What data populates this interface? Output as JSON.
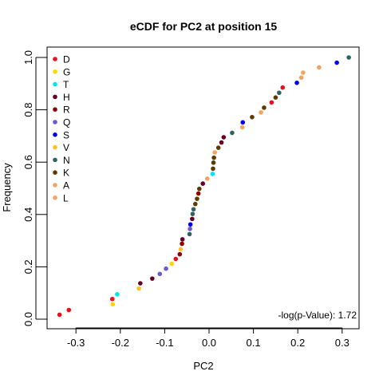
{
  "chart_data": {
    "type": "scatter",
    "title": "eCDF for PC2 at position 15",
    "xlabel": "PC2",
    "ylabel": "Frequency",
    "xlim": [
      -0.36,
      0.33
    ],
    "ylim": [
      0.0,
      1.0
    ],
    "x_ticks": [
      -0.3,
      -0.2,
      -0.1,
      0.0,
      0.1,
      0.2,
      0.3
    ],
    "x_tick_labels": [
      "-0.3",
      "-0.2",
      "-0.1",
      "0.0",
      "0.1",
      "0.2",
      "0.3"
    ],
    "y_ticks": [
      0.0,
      0.2,
      0.4,
      0.6,
      0.8,
      1.0
    ],
    "y_tick_labels": [
      "0.0",
      "0.2",
      "0.4",
      "0.6",
      "0.8",
      "1.0"
    ],
    "grid": false,
    "legend_position": "top-left",
    "annotation": "-log(p-Value): 1.72",
    "legend": [
      {
        "label": "D",
        "color": "#e8101c"
      },
      {
        "label": "G",
        "color": "#ffd700"
      },
      {
        "label": "T",
        "color": "#00e5ee"
      },
      {
        "label": "H",
        "color": "#650021"
      },
      {
        "label": "R",
        "color": "#8b0000"
      },
      {
        "label": "Q",
        "color": "#6a5acd"
      },
      {
        "label": "S",
        "color": "#0000ee"
      },
      {
        "label": "V",
        "color": "#ffc125"
      },
      {
        "label": "N",
        "color": "#2f6363"
      },
      {
        "label": "K",
        "color": "#5c3a00"
      },
      {
        "label": "A",
        "color": "#f4a261"
      },
      {
        "label": "L",
        "color": "#f4a460"
      }
    ],
    "points": [
      {
        "x": -0.337,
        "y": 0.017,
        "series": "D"
      },
      {
        "x": -0.316,
        "y": 0.035,
        "series": "D"
      },
      {
        "x": -0.217,
        "y": 0.057,
        "series": "G"
      },
      {
        "x": -0.218,
        "y": 0.077,
        "series": "D"
      },
      {
        "x": -0.207,
        "y": 0.095,
        "series": "T"
      },
      {
        "x": -0.158,
        "y": 0.117,
        "series": "V"
      },
      {
        "x": -0.155,
        "y": 0.137,
        "series": "H"
      },
      {
        "x": -0.128,
        "y": 0.155,
        "series": "H"
      },
      {
        "x": -0.111,
        "y": 0.173,
        "series": "Q"
      },
      {
        "x": -0.097,
        "y": 0.193,
        "series": "Q"
      },
      {
        "x": -0.084,
        "y": 0.212,
        "series": "G"
      },
      {
        "x": -0.075,
        "y": 0.23,
        "series": "D"
      },
      {
        "x": -0.066,
        "y": 0.248,
        "series": "R"
      },
      {
        "x": -0.064,
        "y": 0.267,
        "series": "V"
      },
      {
        "x": -0.061,
        "y": 0.288,
        "series": "R"
      },
      {
        "x": -0.06,
        "y": 0.305,
        "series": "H"
      },
      {
        "x": -0.044,
        "y": 0.325,
        "series": "N"
      },
      {
        "x": -0.043,
        "y": 0.345,
        "series": "Q"
      },
      {
        "x": -0.042,
        "y": 0.362,
        "series": "S"
      },
      {
        "x": -0.038,
        "y": 0.383,
        "series": "H"
      },
      {
        "x": -0.037,
        "y": 0.402,
        "series": "N"
      },
      {
        "x": -0.035,
        "y": 0.42,
        "series": "N"
      },
      {
        "x": -0.031,
        "y": 0.44,
        "series": "K"
      },
      {
        "x": -0.027,
        "y": 0.46,
        "series": "K"
      },
      {
        "x": -0.024,
        "y": 0.48,
        "series": "R"
      },
      {
        "x": -0.022,
        "y": 0.498,
        "series": "K"
      },
      {
        "x": -0.014,
        "y": 0.518,
        "series": "H"
      },
      {
        "x": -0.004,
        "y": 0.537,
        "series": "A"
      },
      {
        "x": 0.008,
        "y": 0.555,
        "series": "T"
      },
      {
        "x": 0.009,
        "y": 0.575,
        "series": "K"
      },
      {
        "x": 0.01,
        "y": 0.598,
        "series": "K"
      },
      {
        "x": 0.011,
        "y": 0.617,
        "series": "K"
      },
      {
        "x": 0.013,
        "y": 0.637,
        "series": "L"
      },
      {
        "x": 0.021,
        "y": 0.655,
        "series": "K"
      },
      {
        "x": 0.028,
        "y": 0.675,
        "series": "H"
      },
      {
        "x": 0.033,
        "y": 0.695,
        "series": "H"
      },
      {
        "x": 0.052,
        "y": 0.712,
        "series": "N"
      },
      {
        "x": 0.075,
        "y": 0.733,
        "series": "L"
      },
      {
        "x": 0.076,
        "y": 0.752,
        "series": "S"
      },
      {
        "x": 0.097,
        "y": 0.772,
        "series": "K"
      },
      {
        "x": 0.117,
        "y": 0.79,
        "series": "L"
      },
      {
        "x": 0.124,
        "y": 0.808,
        "series": "K"
      },
      {
        "x": 0.141,
        "y": 0.828,
        "series": "D"
      },
      {
        "x": 0.15,
        "y": 0.847,
        "series": "K"
      },
      {
        "x": 0.158,
        "y": 0.865,
        "series": "N"
      },
      {
        "x": 0.166,
        "y": 0.885,
        "series": "D"
      },
      {
        "x": 0.198,
        "y": 0.903,
        "series": "S"
      },
      {
        "x": 0.208,
        "y": 0.923,
        "series": "A"
      },
      {
        "x": 0.212,
        "y": 0.942,
        "series": "L"
      },
      {
        "x": 0.248,
        "y": 0.962,
        "series": "A"
      },
      {
        "x": 0.288,
        "y": 0.98,
        "series": "S"
      },
      {
        "x": 0.315,
        "y": 1.0,
        "series": "N"
      }
    ]
  }
}
